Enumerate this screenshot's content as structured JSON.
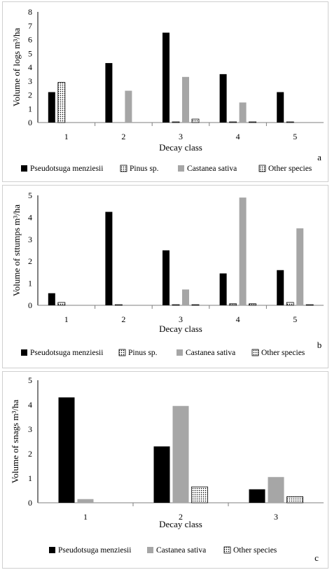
{
  "chart_data": [
    {
      "type": "bar",
      "panel_label": "a",
      "xlabel": "Decay class",
      "ylabel": "Volume of logs m³/ha",
      "categories": [
        "1",
        "2",
        "3",
        "4",
        "5"
      ],
      "ylim": [
        0,
        8
      ],
      "yticks": [
        "0",
        "1",
        "2",
        "3",
        "4",
        "5",
        "6",
        "7",
        "8"
      ],
      "grid": false,
      "legend_position": "bottom",
      "series": [
        {
          "name": "Pseudotsuga menziesii",
          "values": [
            2.2,
            4.3,
            6.5,
            3.5,
            2.2
          ]
        },
        {
          "name": "Pinus sp.",
          "values": [
            2.9,
            0,
            0.05,
            0.05,
            0.05
          ]
        },
        {
          "name": "Castanea sativa",
          "values": [
            0,
            2.3,
            3.3,
            1.45,
            0
          ]
        },
        {
          "name": "Other species",
          "values": [
            0,
            0,
            0.25,
            0.05,
            0
          ]
        }
      ]
    },
    {
      "type": "bar",
      "panel_label": "b",
      "xlabel": "Decay class",
      "ylabel": "Volume of sttumps m³/ha",
      "categories": [
        "1",
        "2",
        "3",
        "4",
        "5"
      ],
      "ylim": [
        0,
        5
      ],
      "yticks": [
        "0",
        "1",
        "2",
        "3",
        "4",
        "5"
      ],
      "grid": false,
      "legend_position": "bottom",
      "series": [
        {
          "name": "Pseudotsuga menziesii",
          "values": [
            0.55,
            4.25,
            2.5,
            1.45,
            1.6
          ]
        },
        {
          "name": "Pinus sp.",
          "values": [
            0.13,
            0.03,
            0.03,
            0.07,
            0.13
          ]
        },
        {
          "name": "Castanea sativa",
          "values": [
            0,
            0,
            0.72,
            4.9,
            3.5
          ]
        },
        {
          "name": "Other species",
          "values": [
            0,
            0,
            0.03,
            0.07,
            0.03
          ]
        }
      ]
    },
    {
      "type": "bar",
      "panel_label": "c",
      "xlabel": "Decay class",
      "ylabel": "Volume of snags m³/ha",
      "categories": [
        "1",
        "2",
        "3"
      ],
      "ylim": [
        0,
        5
      ],
      "yticks": [
        "0",
        "1",
        "2",
        "3",
        "4",
        "5"
      ],
      "grid": false,
      "legend_position": "bottom",
      "series": [
        {
          "name": "Pseudotsuga menziesii",
          "values": [
            4.3,
            2.3,
            0.55
          ]
        },
        {
          "name": "Castanea sativa",
          "values": [
            0.15,
            3.95,
            1.05
          ]
        },
        {
          "name": "Other species",
          "values": [
            0,
            0.65,
            0.25
          ]
        }
      ]
    }
  ],
  "colors": {
    "Pseudotsuga menziesii": "#000000",
    "Pinus sp.": "#ffffff",
    "Castanea sativa": "#a6a6a6",
    "Other species": "#ffffff"
  }
}
